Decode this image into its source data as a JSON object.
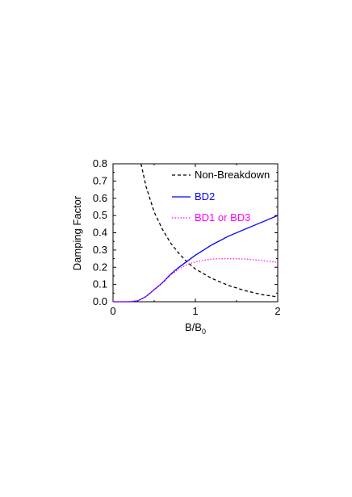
{
  "chart_data": {
    "type": "line",
    "title": "",
    "xlabel": "B/B",
    "xlabel_sub": "0",
    "ylabel": "Damping Factor",
    "xlim": [
      0,
      2
    ],
    "ylim": [
      0,
      0.8
    ],
    "x_ticks": [
      "0",
      "1",
      "2"
    ],
    "y_ticks": [
      "0.0",
      "0.1",
      "0.2",
      "0.3",
      "0.4",
      "0.5",
      "0.6",
      "0.7",
      "0.8"
    ],
    "grid": false,
    "legend_position": "top-right",
    "series": [
      {
        "name": "Non-Breakdown",
        "color": "#000000",
        "style": "dashed",
        "x": [
          0.34,
          0.4,
          0.5,
          0.6,
          0.7,
          0.8,
          0.9,
          1.0,
          1.2,
          1.4,
          1.6,
          1.8,
          2.0
        ],
        "y": [
          0.8,
          0.67,
          0.52,
          0.42,
          0.34,
          0.28,
          0.23,
          0.19,
          0.135,
          0.095,
          0.065,
          0.042,
          0.028
        ]
      },
      {
        "name": "BD2",
        "color": "#0000ff",
        "style": "solid",
        "x": [
          0.0,
          0.2,
          0.3,
          0.4,
          0.5,
          0.6,
          0.7,
          0.8,
          0.9,
          1.0,
          1.2,
          1.4,
          1.6,
          1.8,
          2.0
        ],
        "y": [
          0.0,
          0.0,
          0.005,
          0.03,
          0.07,
          0.11,
          0.16,
          0.2,
          0.235,
          0.27,
          0.33,
          0.38,
          0.42,
          0.46,
          0.5
        ]
      },
      {
        "name": "BD1 or BD3",
        "color": "#ff00ff",
        "style": "dotted",
        "x": [
          0.0,
          0.2,
          0.3,
          0.4,
          0.5,
          0.6,
          0.7,
          0.8,
          0.9,
          1.0,
          1.2,
          1.4,
          1.6,
          1.8,
          2.0
        ],
        "y": [
          0.0,
          0.0,
          0.005,
          0.03,
          0.07,
          0.11,
          0.155,
          0.19,
          0.215,
          0.232,
          0.248,
          0.25,
          0.248,
          0.24,
          0.228
        ]
      }
    ]
  }
}
